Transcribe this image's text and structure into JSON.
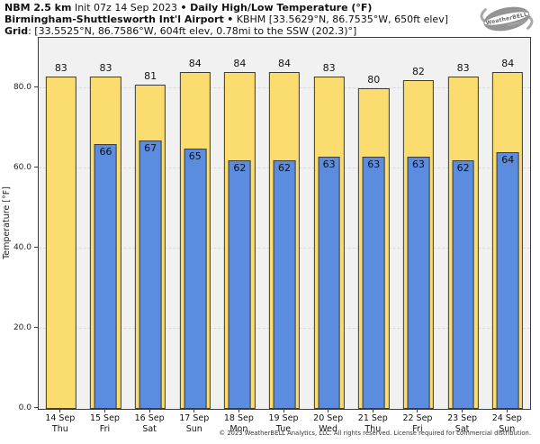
{
  "header": {
    "model": "NBM 2.5 km",
    "init": "Init 07z 14 Sep 2023",
    "separator": "•",
    "product": "Daily High/Low Temperature (°F)",
    "station": "Birmingham-Shuttlesworth Int'l Airport",
    "station_meta": "KBHM [33.5629°N, 86.7535°W, 650ft elev]",
    "grid_label": "Grid",
    "grid_meta": ": [33.5525°N, 86.7586°W, 604ft elev, 0.78mi to the SSW (202.3)°]"
  },
  "logo": {
    "brand": "WeatherBELL",
    "sub": "Analytics LLC"
  },
  "footer": {
    "copyright": "© 2023 WeatherBELL Analytics, LLC. All rights reserved. License required for commercial distribution."
  },
  "colors": {
    "high_bar": "#FADD6E",
    "low_bar": "#5B8CDF",
    "bar_border": "#3C3C3C",
    "plot_bg": "#F1F1F1",
    "grid_line": "#D8D8D8",
    "axis": "#3C3C3C"
  },
  "chart_data": {
    "type": "bar",
    "title": "NBM 2.5 km Init 07z 14 Sep 2023 • Daily High/Low Temperature (°F)",
    "subtitle": "Birmingham-Shuttlesworth Int'l Airport • KBHM [33.5629°N, 86.7535°W, 650ft elev]",
    "grid_info": "Grid: [33.5525°N, 86.7586°W, 604ft elev, 0.78mi to the SSW (202.3)°]",
    "xlabel": "",
    "ylabel": "Temperature [°F]",
    "ylim": [
      0,
      92.6
    ],
    "yticks": [
      0,
      20,
      40,
      60,
      80
    ],
    "ytick_labels": [
      "0.0",
      "20.0",
      "40.0",
      "60.0",
      "80.0"
    ],
    "grid": "horizontal-dashed",
    "legend": "none",
    "categories": [
      {
        "date": "14 Sep",
        "day": "Thu"
      },
      {
        "date": "15 Sep",
        "day": "Fri"
      },
      {
        "date": "16 Sep",
        "day": "Sat"
      },
      {
        "date": "17 Sep",
        "day": "Sun"
      },
      {
        "date": "18 Sep",
        "day": "Mon"
      },
      {
        "date": "19 Sep",
        "day": "Tue"
      },
      {
        "date": "20 Sep",
        "day": "Wed"
      },
      {
        "date": "21 Sep",
        "day": "Thu"
      },
      {
        "date": "22 Sep",
        "day": "Fri"
      },
      {
        "date": "23 Sep",
        "day": "Sat"
      },
      {
        "date": "24 Sep",
        "day": "Sun"
      }
    ],
    "series": [
      {
        "name": "Daily High",
        "color": "#FADD6E",
        "values": [
          83,
          83,
          81,
          84,
          84,
          84,
          83,
          80,
          82,
          83,
          84
        ]
      },
      {
        "name": "Daily Low",
        "color": "#5B8CDF",
        "values": [
          null,
          66,
          67,
          65,
          62,
          62,
          63,
          63,
          63,
          62,
          64
        ]
      }
    ]
  }
}
